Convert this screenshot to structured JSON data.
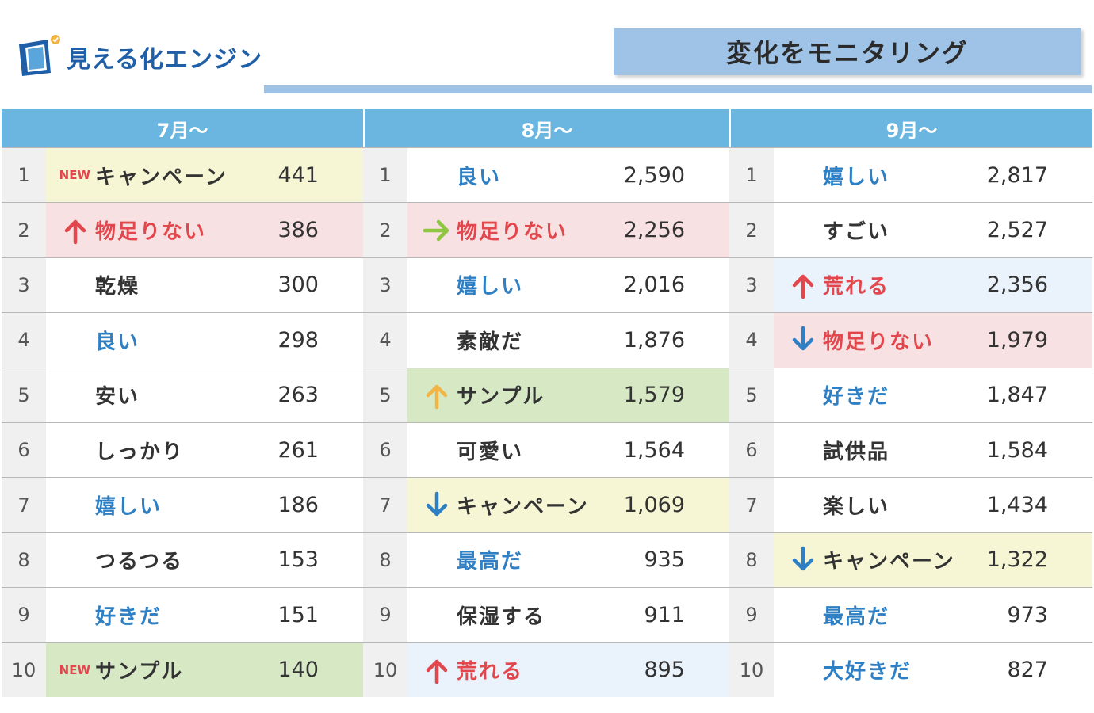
{
  "brand": {
    "name": "見える化エンジン",
    "color": "#1f5fa8"
  },
  "banner": {
    "title": "変化をモニタリング",
    "color": "#9fc3e6"
  },
  "colors": {
    "header": "#6bb6e0",
    "yellow": "#f6f6d4",
    "pink": "#f8e1e2",
    "green": "#d7e8c5",
    "lightblue": "#eaf3fb",
    "blue_text": "#2e7fc3",
    "red_text": "#e2474d",
    "arrow_up": "#e2474d",
    "arrow_down": "#2e7fc3",
    "arrow_right": "#8ec63f",
    "arrow_up_yellow": "#f2b544"
  },
  "months": [
    "7月～",
    "8月～",
    "9月～"
  ],
  "columns": [
    {
      "rows": [
        {
          "rank": "1",
          "word": "キャンペーン",
          "count": "441",
          "marker": "new",
          "new_label": "NEW",
          "color": "black",
          "bg": "yellow"
        },
        {
          "rank": "2",
          "word": "物足りない",
          "count": "386",
          "marker": "arrow-up-red",
          "color": "red",
          "bg": "pink"
        },
        {
          "rank": "3",
          "word": "乾燥",
          "count": "300",
          "marker": "",
          "color": "black",
          "bg": ""
        },
        {
          "rank": "4",
          "word": "良い",
          "count": "298",
          "marker": "",
          "color": "blue",
          "bg": ""
        },
        {
          "rank": "5",
          "word": "安い",
          "count": "263",
          "marker": "",
          "color": "black",
          "bg": ""
        },
        {
          "rank": "6",
          "word": "しっかり",
          "count": "261",
          "marker": "",
          "color": "black",
          "bg": ""
        },
        {
          "rank": "7",
          "word": "嬉しい",
          "count": "186",
          "marker": "",
          "color": "blue",
          "bg": ""
        },
        {
          "rank": "8",
          "word": "つるつる",
          "count": "153",
          "marker": "",
          "color": "black",
          "bg": ""
        },
        {
          "rank": "9",
          "word": "好きだ",
          "count": "151",
          "marker": "",
          "color": "blue",
          "bg": ""
        },
        {
          "rank": "10",
          "word": "サンプル",
          "count": "140",
          "marker": "new",
          "new_label": "NEW",
          "color": "black",
          "bg": "green"
        }
      ]
    },
    {
      "rows": [
        {
          "rank": "1",
          "word": "良い",
          "count": "2,590",
          "marker": "",
          "color": "blue",
          "bg": ""
        },
        {
          "rank": "2",
          "word": "物足りない",
          "count": "2,256",
          "marker": "arrow-right-green",
          "color": "red",
          "bg": "pink"
        },
        {
          "rank": "3",
          "word": "嬉しい",
          "count": "2,016",
          "marker": "",
          "color": "blue",
          "bg": ""
        },
        {
          "rank": "4",
          "word": "素敵だ",
          "count": "1,876",
          "marker": "",
          "color": "black",
          "bg": ""
        },
        {
          "rank": "5",
          "word": "サンプル",
          "count": "1,579",
          "marker": "arrow-up-yellow",
          "color": "black",
          "bg": "green"
        },
        {
          "rank": "6",
          "word": "可愛い",
          "count": "1,564",
          "marker": "",
          "color": "black",
          "bg": ""
        },
        {
          "rank": "7",
          "word": "キャンペーン",
          "count": "1,069",
          "marker": "arrow-down-blue",
          "color": "black",
          "bg": "yellow"
        },
        {
          "rank": "8",
          "word": "最高だ",
          "count": "935",
          "marker": "",
          "color": "blue",
          "bg": ""
        },
        {
          "rank": "9",
          "word": "保湿する",
          "count": "911",
          "marker": "",
          "color": "black",
          "bg": ""
        },
        {
          "rank": "10",
          "word": "荒れる",
          "count": "895",
          "marker": "arrow-up-red",
          "color": "red",
          "bg": "lightblue"
        }
      ]
    },
    {
      "rows": [
        {
          "rank": "1",
          "word": "嬉しい",
          "count": "2,817",
          "marker": "",
          "color": "blue",
          "bg": ""
        },
        {
          "rank": "2",
          "word": "すごい",
          "count": "2,527",
          "marker": "",
          "color": "black",
          "bg": ""
        },
        {
          "rank": "3",
          "word": "荒れる",
          "count": "2,356",
          "marker": "arrow-up-red",
          "color": "red",
          "bg": "lightblue"
        },
        {
          "rank": "4",
          "word": "物足りない",
          "count": "1,979",
          "marker": "arrow-down-blue",
          "color": "red",
          "bg": "pink"
        },
        {
          "rank": "5",
          "word": "好きだ",
          "count": "1,847",
          "marker": "",
          "color": "blue",
          "bg": ""
        },
        {
          "rank": "6",
          "word": "試供品",
          "count": "1,584",
          "marker": "",
          "color": "black",
          "bg": ""
        },
        {
          "rank": "7",
          "word": "楽しい",
          "count": "1,434",
          "marker": "",
          "color": "black",
          "bg": ""
        },
        {
          "rank": "8",
          "word": "キャンペーン",
          "count": "1,322",
          "marker": "arrow-down-blue",
          "color": "black",
          "bg": "yellow"
        },
        {
          "rank": "9",
          "word": "最高だ",
          "count": "973",
          "marker": "",
          "color": "blue",
          "bg": ""
        },
        {
          "rank": "10",
          "word": "大好きだ",
          "count": "827",
          "marker": "",
          "color": "blue",
          "bg": ""
        }
      ]
    }
  ]
}
